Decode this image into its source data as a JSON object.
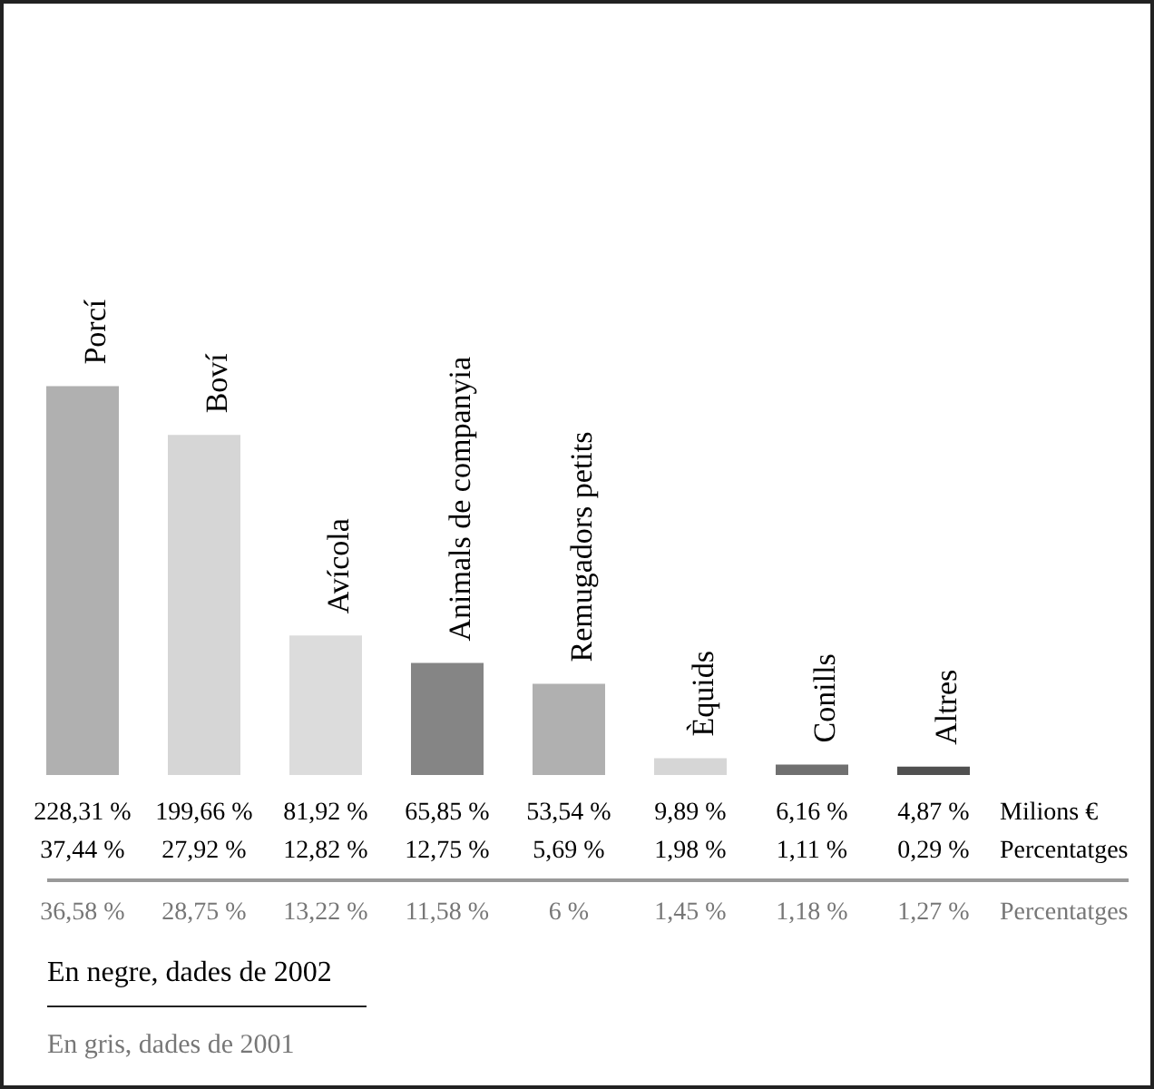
{
  "chart_data": {
    "type": "bar",
    "categories": [
      "Porcí",
      "Boví",
      "Avícola",
      "Animals de companyia",
      "Remugadors petits",
      "Èquids",
      "Conills",
      "Altres"
    ],
    "series": [
      {
        "colors": [
          "#b0b0b0",
          "#d6d6d6",
          "#dcdcdc",
          "#858585",
          "#b0b0b0",
          "#d6d6d6",
          "#707070",
          "#505050"
        ],
        "values": [
          228.31,
          199.66,
          81.92,
          65.85,
          53.54,
          9.89,
          6.16,
          4.87
        ],
        "value_labels": [
          "228,31 %",
          "199,66 %",
          "81,92 %",
          "65,85 %",
          "53,54 %",
          "9,89 %",
          "6,16 %",
          "4,87 %"
        ]
      }
    ],
    "annotations": [
      "Milions €",
      "Percentatges",
      "Percentatges",
      "En negre, dades de 2002",
      "En gris, dades de 2001",
      "37,44 %",
      "27,92 %",
      "12,82 %",
      "12,75 %",
      "5,69 %",
      "1,98 %",
      "1,11 %",
      "0,29 %",
      "36,58 %",
      "28,75 %",
      "13,22 %",
      "11,58 %",
      "6 %",
      "1,45 %",
      "1,18 %",
      "1,27 %"
    ],
    "grid": false
  }
}
